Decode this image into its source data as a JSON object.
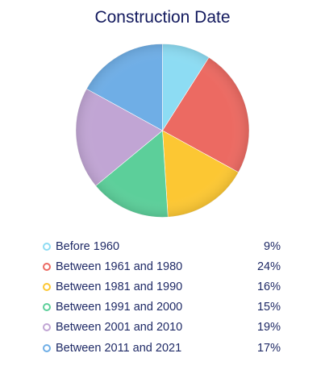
{
  "chart_data": {
    "type": "pie",
    "title": "Construction Date",
    "categories": [
      "Before 1960",
      "Between 1961 and 1980",
      "Between 1981 and 1990",
      "Between 1991 and 2000",
      "Between 2001 and 2010",
      "Between 2011 and 2021"
    ],
    "values": [
      9,
      24,
      16,
      15,
      19,
      17
    ],
    "value_labels": [
      "9%",
      "24%",
      "16%",
      "15%",
      "19%",
      "17%"
    ],
    "colors": [
      "#8ddcf3",
      "#ec6a62",
      "#fcc733",
      "#5ccf9a",
      "#c1a5d4",
      "#6faee6"
    ],
    "legend_position": "bottom"
  }
}
